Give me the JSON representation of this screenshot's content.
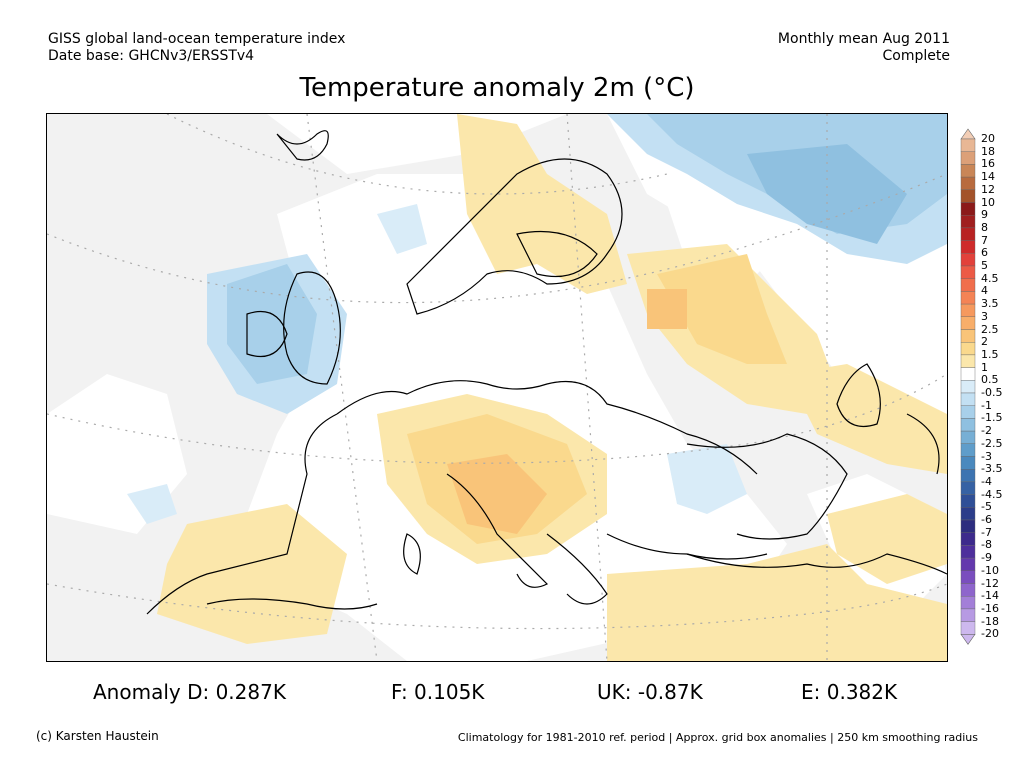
{
  "header": {
    "left_line1": "GISS global land-ocean temperature index",
    "left_line2": "Date base: GHCNv3/ERSSTv4",
    "right_line1": "Monthly mean Aug 2011",
    "right_line2": "Complete"
  },
  "title": "Temperature anomaly 2m (°C)",
  "colorbar": {
    "labels": [
      "20",
      "18",
      "16",
      "14",
      "12",
      "10",
      "9",
      "8",
      "7",
      "6",
      "5",
      "4.5",
      "4",
      "3.5",
      "3",
      "2.5",
      "2",
      "1.5",
      "1",
      "0.5",
      "-0.5",
      "-1",
      "-1.5",
      "-2",
      "-2.5",
      "-3",
      "-3.5",
      "-4",
      "-4.5",
      "-5",
      "-6",
      "-7",
      "-8",
      "-9",
      "-10",
      "-12",
      "-14",
      "-16",
      "-18",
      "-20"
    ],
    "colors": [
      "#f2cdb5",
      "#e8b795",
      "#dca078",
      "#c98657",
      "#b86b3e",
      "#a3532a",
      "#8b1a1a",
      "#a01f1f",
      "#b82222",
      "#cf2b2b",
      "#e2413b",
      "#ec5a46",
      "#f06e4c",
      "#f48355",
      "#f6995e",
      "#f8ae6a",
      "#f9c479",
      "#fad98d",
      "#fbe7ab",
      "#ffffff",
      "#d9ecf8",
      "#c3e0f3",
      "#a8d0ea",
      "#8fc0e0",
      "#77afd5",
      "#5f9dca",
      "#4a89be",
      "#3d74b1",
      "#3662a4",
      "#2f4f97",
      "#2c3d8a",
      "#2d2d7f",
      "#3d2a8c",
      "#4e2f9c",
      "#6439ad",
      "#7a4ebe",
      "#8e65cc",
      "#a37fd8",
      "#b79ae3",
      "#cdb8ee"
    ]
  },
  "map": {
    "projection_note": "",
    "anomaly_colors": {
      "grey_missing": "#f2f2f2",
      "neutral": "#ffffff",
      "warm_1": "#fbe7ab",
      "warm_1_5": "#fad98d",
      "warm_2": "#f9c479",
      "cool_0_5": "#d9ecf8",
      "cool_1": "#c3e0f3",
      "cool_1_5": "#a8d0ea",
      "cool_2": "#8fc0e0",
      "cool_2_5": "#77afd5"
    }
  },
  "stats": {
    "D": "Anomaly D: 0.287K",
    "F": "F: 0.105K",
    "UK": "UK: -0.87K",
    "E": "E: 0.382K"
  },
  "footer": {
    "credit": "(c) Karsten Haustein",
    "note": "Climatology for 1981-2010 ref. period | Approx. grid box anomalies | 250 km smoothing radius"
  }
}
